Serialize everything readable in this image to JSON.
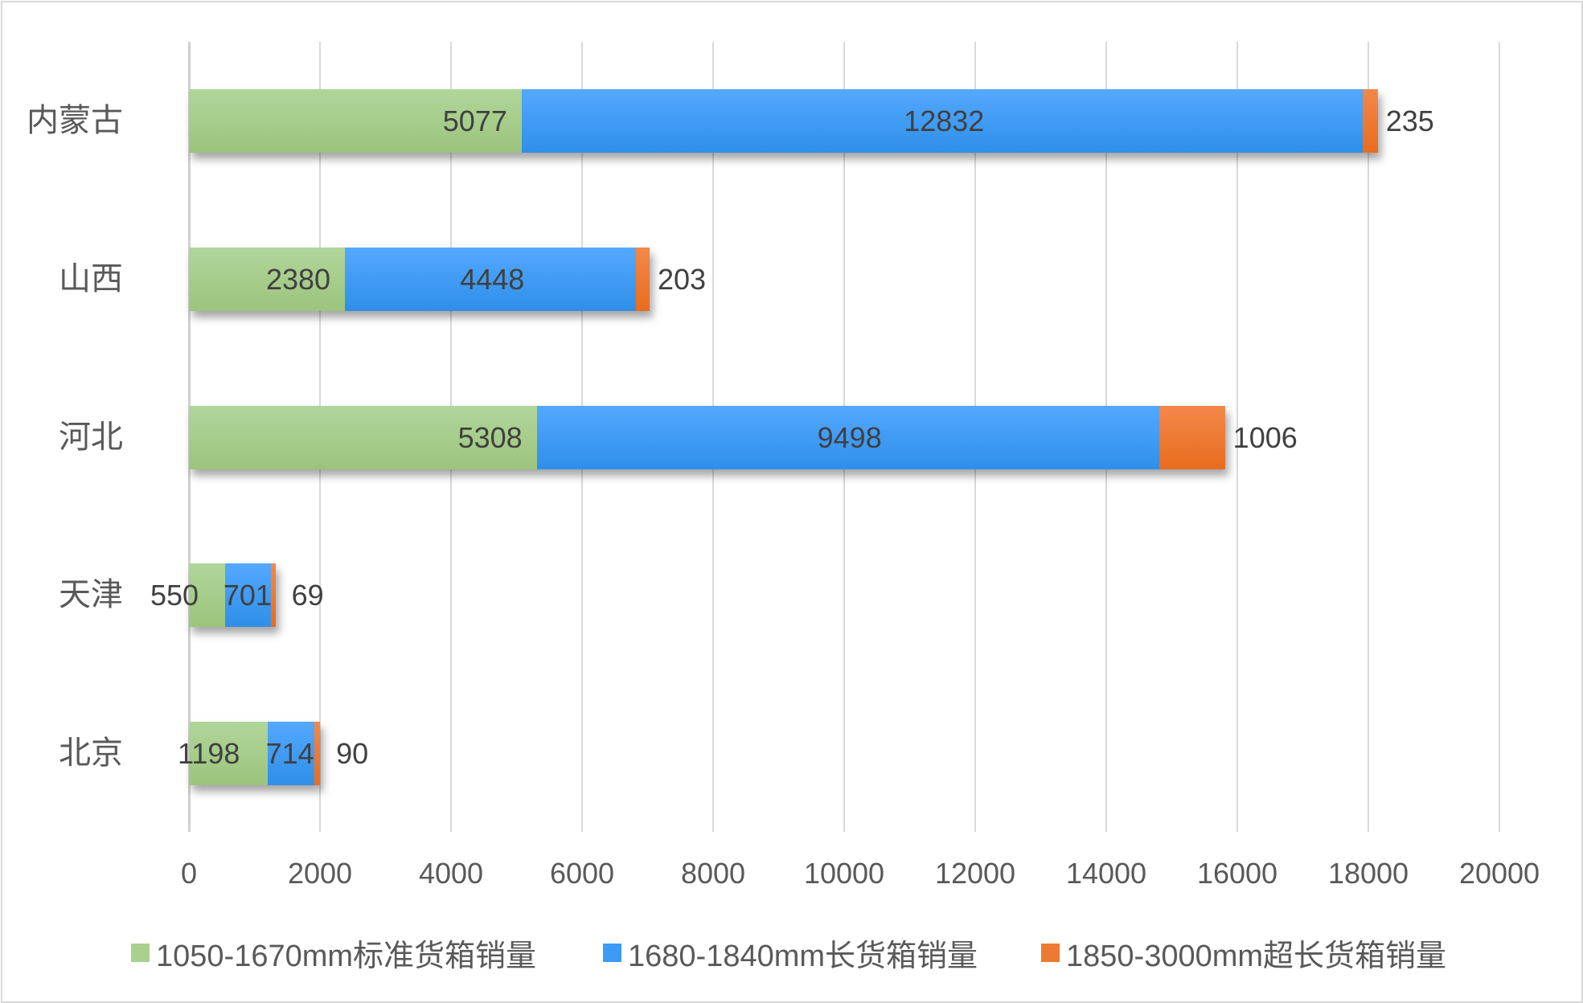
{
  "chart_data": {
    "type": "bar",
    "orientation": "horizontal",
    "stacked": true,
    "title": "",
    "xlabel": "",
    "ylabel": "",
    "categories": [
      "内蒙古",
      "山西",
      "河北",
      "天津",
      "北京"
    ],
    "series": [
      {
        "name": "1050-1670mm标准货箱销量",
        "color": "#a9d18e",
        "values": [
          5077,
          2380,
          5308,
          550,
          1198
        ]
      },
      {
        "name": "1680-1840mm长货箱销量",
        "color": "#3d9bf5",
        "values": [
          12832,
          4448,
          9498,
          701,
          714
        ]
      },
      {
        "name": "1850-3000mm超长货箱销量",
        "color": "#ed7a32",
        "values": [
          235,
          203,
          1006,
          69,
          90
        ]
      }
    ],
    "xlim": [
      0,
      20000
    ],
    "x_ticks": [
      "0",
      "2000",
      "4000",
      "6000",
      "8000",
      "10000",
      "12000",
      "14000",
      "16000",
      "18000",
      "20000"
    ],
    "grid": true,
    "legend_position": "bottom",
    "data_labels": true
  },
  "text_color": "#404040"
}
